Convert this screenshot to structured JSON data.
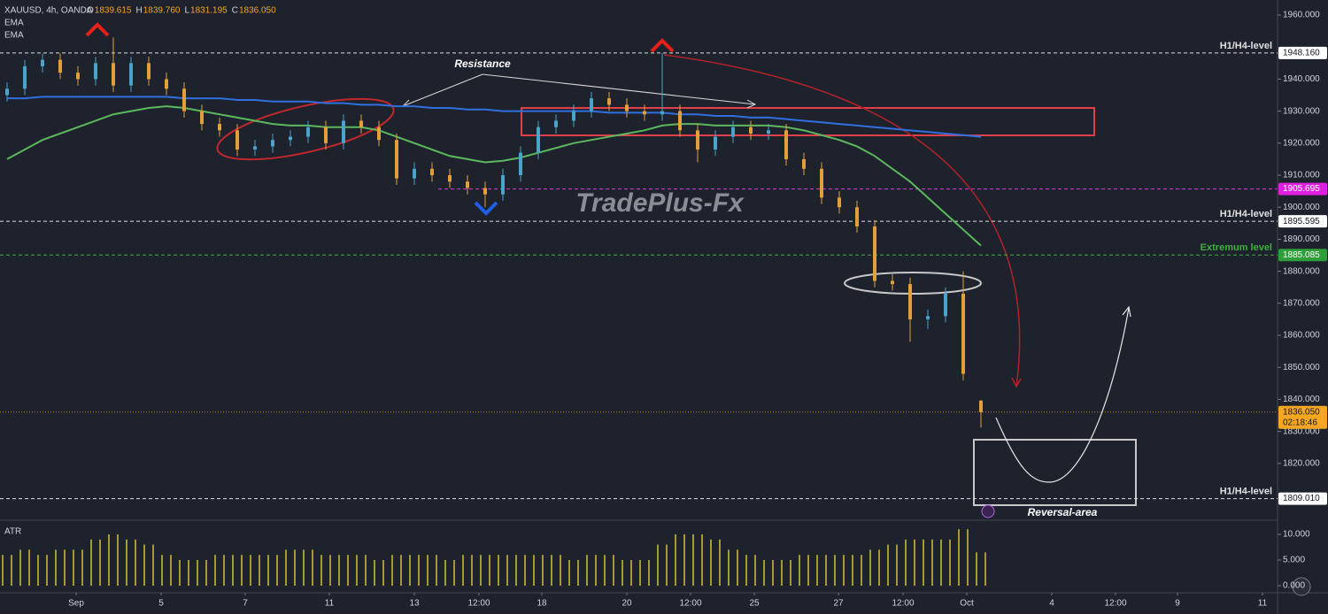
{
  "chart_data": {
    "type": "ohlc",
    "symbol": "XAUUSD, 4h, OANDA",
    "header": [
      {
        "key": "O",
        "value": "1839.615"
      },
      {
        "key": "H",
        "value": "1839.760"
      },
      {
        "key": "L",
        "value": "1831.195"
      },
      {
        "key": "C",
        "value": "1836.050"
      }
    ],
    "indicator_labels": [
      "EMA",
      "EMA"
    ],
    "up_color": "#4aa3c9",
    "down_color": "#e3a03a",
    "xlim": [
      -0.4,
      71.75
    ],
    "xticks": [
      {
        "value": 3.9,
        "label": "Sep"
      },
      {
        "value": 8.7,
        "label": "5"
      },
      {
        "value": 13.45,
        "label": "7"
      },
      {
        "value": 18.2,
        "label": "11"
      },
      {
        "value": 23,
        "label": "13"
      },
      {
        "value": 26.65,
        "label": "12:00"
      },
      {
        "value": 30.2,
        "label": "18"
      },
      {
        "value": 35,
        "label": "20"
      },
      {
        "value": 38.6,
        "label": "12:00"
      },
      {
        "value": 42.2,
        "label": "25"
      },
      {
        "value": 46.95,
        "label": "27"
      },
      {
        "value": 50.6,
        "label": "12:00"
      },
      {
        "value": 54.2,
        "label": "Oct"
      },
      {
        "value": 59,
        "label": "4"
      },
      {
        "value": 62.6,
        "label": "12:00"
      },
      {
        "value": 66.1,
        "label": "9"
      },
      {
        "value": 70.9,
        "label": "11"
      }
    ],
    "ylim": [
      1803.1,
      1964.7
    ],
    "yticks": [
      {
        "value": 1960,
        "label": "1960.000"
      },
      {
        "value": 1940,
        "label": "1940.000"
      },
      {
        "value": 1930,
        "label": "1930.000"
      },
      {
        "value": 1920,
        "label": "1920.000"
      },
      {
        "value": 1910,
        "label": "1910.000"
      },
      {
        "value": 1900,
        "label": "1900.000"
      },
      {
        "value": 1890,
        "label": "1890.000"
      },
      {
        "value": 1880,
        "label": "1880.000"
      },
      {
        "value": 1870,
        "label": "1870.000"
      },
      {
        "value": 1860,
        "label": "1860.000"
      },
      {
        "value": 1850,
        "label": "1850.000"
      },
      {
        "value": 1840,
        "label": "1840.000"
      },
      {
        "value": 1830,
        "label": "1830.000"
      },
      {
        "value": 1820,
        "label": "1820.000"
      }
    ],
    "open": [
      1935,
      1937,
      1944,
      1946,
      1942,
      1940,
      1945,
      1938,
      1945,
      1940,
      1937,
      1930,
      1926,
      1924,
      1918,
      1919,
      1921,
      1922,
      1925,
      1920,
      1927,
      1925,
      1921,
      1909,
      1912,
      1910,
      1908,
      1906,
      1904,
      1910,
      1917,
      1925,
      1927,
      1930,
      1934,
      1932,
      1930,
      1929,
      1930,
      1924,
      1918,
      1922,
      1925,
      1923,
      1924,
      1915,
      1912,
      1903,
      1900,
      1894,
      1877,
      1876,
      1865,
      1866,
      1873,
      1839.615
    ],
    "high": [
      1939,
      1946,
      1948,
      1948,
      1944,
      1947,
      1953,
      1947,
      1947,
      1942,
      1939,
      1932,
      1928,
      1926,
      1921,
      1923,
      1924,
      1927,
      1927,
      1929,
      1929,
      1927,
      1923,
      1914,
      1914,
      1912,
      1910,
      1908,
      1912,
      1919,
      1927,
      1929,
      1932,
      1936,
      1936,
      1934,
      1932,
      1948.16,
      1932,
      1926,
      1924,
      1927,
      1927,
      1926,
      1926,
      1917,
      1914,
      1905,
      1902,
      1896,
      1879,
      1878,
      1868,
      1875,
      1880,
      1839.76
    ],
    "low": [
      1933,
      1935,
      1942,
      1940,
      1938,
      1938,
      1936,
      1936,
      1938,
      1935,
      1928,
      1924,
      1922,
      1916,
      1916,
      1917,
      1919,
      1920,
      1918,
      1918,
      1923,
      1919,
      1907,
      1907,
      1908,
      1906,
      1904,
      1900,
      1902,
      1908,
      1915,
      1923,
      1925,
      1928,
      1930,
      1928,
      1927,
      1927,
      1922,
      1914,
      1916,
      1920,
      1921,
      1921,
      1913,
      1910,
      1901,
      1898,
      1892,
      1875,
      1874,
      1858,
      1862,
      1864,
      1846,
      1831.195
    ],
    "close": [
      1937,
      1944,
      1946,
      1942,
      1940,
      1945,
      1938,
      1945,
      1940,
      1937,
      1930,
      1926,
      1924,
      1918,
      1919,
      1921,
      1922,
      1925,
      1920,
      1927,
      1925,
      1921,
      1909,
      1912,
      1910,
      1908,
      1906,
      1904,
      1910,
      1917,
      1925,
      1927,
      1930,
      1934,
      1932,
      1930,
      1929,
      1930,
      1924,
      1918,
      1922,
      1925,
      1923,
      1924,
      1915,
      1912,
      1903,
      1900,
      1894,
      1877,
      1876,
      1865,
      1866,
      1873,
      1848,
      1836.05
    ],
    "series": [
      {
        "name": "EMA",
        "color": "#2f6fe0",
        "values": [
          1934,
          1934,
          1934.5,
          1934.5,
          1934.5,
          1934.5,
          1934.5,
          1934.5,
          1934.5,
          1934.5,
          1934,
          1934,
          1934,
          1933.5,
          1933.5,
          1933,
          1933,
          1933,
          1932.5,
          1932.5,
          1932,
          1932,
          1931.5,
          1931.5,
          1931,
          1931,
          1930.5,
          1930.5,
          1930,
          1930,
          1930,
          1930,
          1930,
          1930,
          1929.5,
          1929.5,
          1929.5,
          1929.5,
          1929,
          1929,
          1928.5,
          1928.5,
          1928,
          1928,
          1927.5,
          1927,
          1926.5,
          1926,
          1925.5,
          1925,
          1924.5,
          1924,
          1923.5,
          1923,
          1922.5,
          1922
        ]
      },
      {
        "name": "EMA",
        "color": "#5cb85c",
        "values": [
          1915,
          1918,
          1921,
          1923,
          1925,
          1927,
          1929,
          1930,
          1931,
          1931.5,
          1931,
          1930,
          1929,
          1928,
          1927,
          1926,
          1925.5,
          1925.5,
          1925,
          1925,
          1925,
          1924,
          1922,
          1920,
          1918,
          1916,
          1915,
          1914,
          1914.5,
          1915.5,
          1917,
          1918.5,
          1920,
          1921,
          1922,
          1923,
          1924,
          1925.5,
          1926,
          1926,
          1925.5,
          1925.5,
          1925.5,
          1925.5,
          1925,
          1924,
          1922.5,
          1921,
          1919,
          1916,
          1912,
          1908,
          1903,
          1898,
          1893,
          1888
        ]
      }
    ],
    "levels": [
      {
        "value": 1948.16,
        "label": "1948.160",
        "text": "H1/H4-level",
        "color": "#e0e0e0",
        "tag": "#ffffff"
      },
      {
        "value": 1905.695,
        "label": "1905.695",
        "color": "#d63ad6",
        "tag": "#e020e0"
      },
      {
        "value": 1895.595,
        "label": "1895.595",
        "text": "H1/H4-level",
        "color": "#e0e0e0",
        "tag": "#ffffff"
      },
      {
        "value": 1885.085,
        "label": "1885.085",
        "text": "Extremum  level",
        "color": "#3fae3f",
        "tag": "#2e9e3a"
      },
      {
        "value": 1809.01,
        "label": "1809.010",
        "text": "H1/H4-level",
        "color": "#e0e0e0",
        "tag": "#ffffff"
      }
    ],
    "last_price": {
      "value": 1836.05,
      "label": "1836.050",
      "countdown": "02:18:46",
      "color": "#f5a623"
    },
    "annotations": {
      "resistance": "Resistance",
      "watermark": "TradePlus-Fx",
      "reversal": "Reversal-area"
    },
    "atr": {
      "name": "ATR",
      "color": "#d4c23a",
      "ylim": [
        -1.38,
        12.41
      ],
      "yticks": [
        {
          "value": 10,
          "label": "10.000"
        },
        {
          "value": 5,
          "label": "5.000"
        },
        {
          "value": 0,
          "label": "0.000"
        }
      ],
      "values": [
        6,
        7,
        6,
        7,
        7,
        9,
        10,
        9,
        8,
        6,
        5,
        5,
        6,
        6,
        6,
        6,
        7,
        7,
        6,
        6,
        6,
        5,
        6,
        6,
        6,
        5,
        6,
        6,
        6,
        6,
        6,
        6,
        5,
        6,
        6,
        5,
        5,
        8,
        10,
        10,
        9,
        7,
        6,
        5,
        5,
        6,
        6,
        6,
        6,
        7,
        8,
        9,
        9,
        9,
        11,
        6.5
      ]
    }
  }
}
